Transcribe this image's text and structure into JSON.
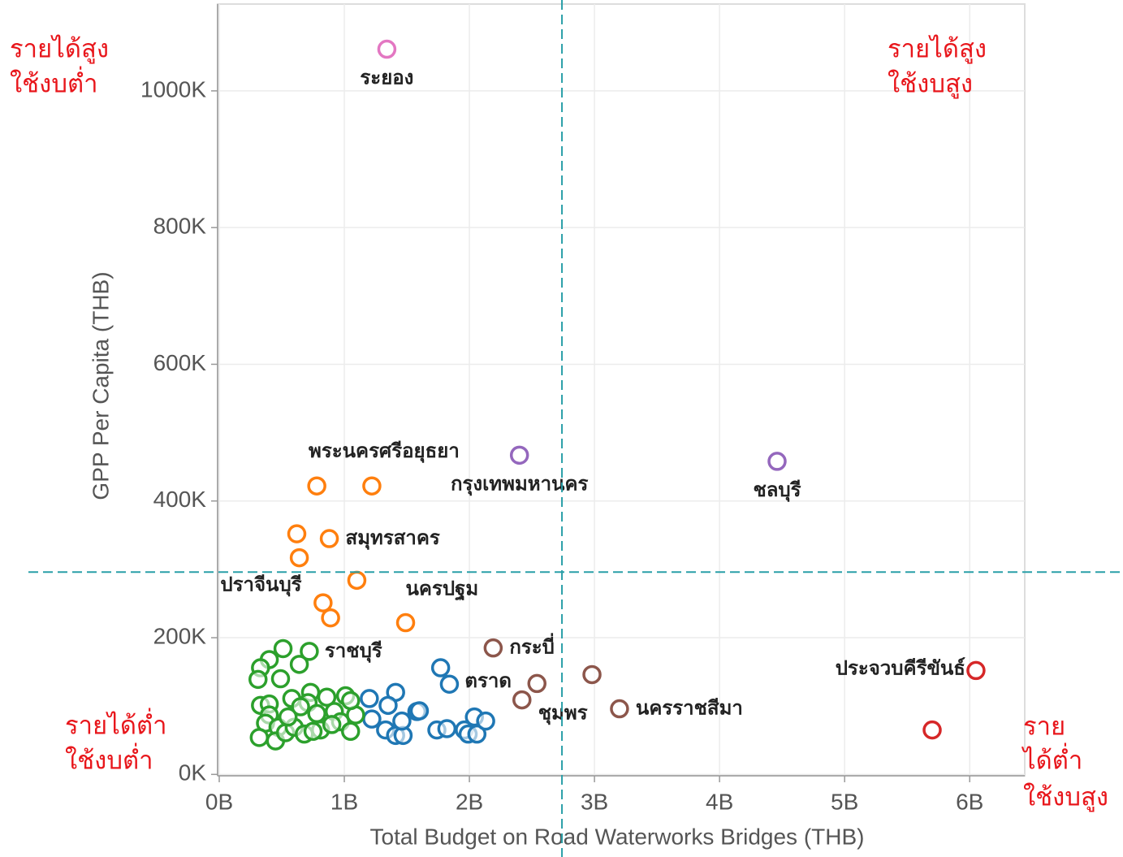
{
  "chart_data": {
    "type": "scatter",
    "x_label": "Total Budget on Road Waterworks Bridges (THB)",
    "y_label": "GPP Per Capita (THB)",
    "xlim": [
      -13000000,
      6440000000
    ],
    "ylim": [
      -2000,
      1127000
    ],
    "xticks": [
      {
        "value": 0,
        "label": "0B"
      },
      {
        "value": 1000000000,
        "label": "1B"
      },
      {
        "value": 2000000000,
        "label": "2B"
      },
      {
        "value": 3000000000,
        "label": "3B"
      },
      {
        "value": 4000000000,
        "label": "4B"
      },
      {
        "value": 5000000000,
        "label": "5B"
      },
      {
        "value": 6000000000,
        "label": "6B"
      }
    ],
    "yticks": [
      {
        "value": 0,
        "label": "0K"
      },
      {
        "value": 200000,
        "label": "200K"
      },
      {
        "value": 400000,
        "label": "400K"
      },
      {
        "value": 600000,
        "label": "600K"
      },
      {
        "value": 800000,
        "label": "800K"
      },
      {
        "value": 1000000,
        "label": "1000K"
      }
    ],
    "grid": true,
    "reference_lines": {
      "x": 2740000000,
      "y": 296000,
      "color": "#2a9fa8"
    },
    "quadrant_labels": {
      "top_left": [
        "รายได้สูง",
        "ใช้งบต่ำ"
      ],
      "top_right": [
        "รายได้สูง",
        "ใช้งบสูง"
      ],
      "bottom_left": [
        "รายได้ต่ำ",
        "ใช้งบต่ำ"
      ],
      "bottom_right": [
        "ราย",
        "ได้ต่ำ",
        "ใช้งบสูง"
      ]
    },
    "series": [
      {
        "color": "#e377c2",
        "x": [
          1340000000
        ],
        "y": [
          1061000
        ],
        "labels": [
          "ระยอง"
        ]
      },
      {
        "color": "#9467bd",
        "x": [
          2400000000,
          4460000000
        ],
        "y": [
          467000,
          458000
        ],
        "labels": [
          "กรุงเทพมหานคร",
          "ชลบุรี"
        ]
      },
      {
        "color": "#ff7f0e",
        "x": [
          780000000,
          1220000000,
          620000000,
          880000000,
          640000000,
          1100000000,
          830000000,
          890000000,
          1490000000
        ],
        "y": [
          422000,
          422000,
          352000,
          345000,
          317000,
          284000,
          251000,
          229000,
          222000
        ],
        "labels": [
          null,
          "พระนครศรีอยุธยา",
          null,
          "สมุทรสาคร",
          "ปราจีนบุรี",
          null,
          null,
          null,
          "นครปฐม"
        ]
      },
      {
        "color": "#8c564b",
        "x": [
          2190000000,
          2540000000,
          2420000000,
          2980000000,
          3200000000
        ],
        "y": [
          185000,
          133000,
          109000,
          146000,
          96000
        ],
        "labels": [
          "กระบี่",
          null,
          "ชุมพร",
          null,
          "นครราชสีมา"
        ]
      },
      {
        "color": "#d62728",
        "x": [
          6050000000,
          5700000000
        ],
        "y": [
          152000,
          65000
        ],
        "labels": [
          "ประจวบคีรีขันธ์",
          null
        ]
      },
      {
        "color": "#1f77b4",
        "x": [
          1770000000,
          1840000000,
          1200000000,
          1410000000,
          1350000000,
          1220000000,
          1330000000,
          1410000000,
          1470000000,
          1460000000,
          1580000000,
          1600000000,
          1740000000,
          1820000000,
          1960000000,
          1990000000,
          2040000000,
          2060000000,
          2130000000
        ],
        "y": [
          156000,
          132000,
          111000,
          120000,
          101000,
          81000,
          65000,
          57000,
          57000,
          78000,
          92000,
          93000,
          65000,
          67000,
          65000,
          59000,
          84000,
          59000,
          78000
        ],
        "labels": [
          null,
          "ตราด",
          null,
          null,
          null,
          null,
          null,
          null,
          null,
          null,
          null,
          null,
          null,
          null,
          null,
          null,
          null,
          null,
          null
        ]
      },
      {
        "color": "#2ca02c",
        "x": [
          510000000,
          400000000,
          720000000,
          330000000,
          310000000,
          490000000,
          640000000,
          730000000,
          580000000,
          710000000,
          860000000,
          1010000000,
          330000000,
          400000000,
          400000000,
          370000000,
          470000000,
          320000000,
          450000000,
          530000000,
          600000000,
          650000000,
          780000000,
          920000000,
          970000000,
          810000000,
          680000000,
          750000000,
          900000000,
          1050000000,
          1090000000,
          1050000000,
          550000000
        ],
        "y": [
          184000,
          168000,
          180000,
          156000,
          139000,
          140000,
          161000,
          120000,
          111000,
          105000,
          113000,
          115000,
          101000,
          103000,
          87000,
          75000,
          69000,
          54000,
          49000,
          61000,
          69000,
          99000,
          89000,
          92000,
          77000,
          65000,
          59000,
          63000,
          73000,
          63000,
          87000,
          108000,
          84000
        ],
        "labels": [
          null,
          null,
          "ราชบุรี",
          null,
          null,
          null,
          null,
          null,
          null,
          null,
          null,
          null,
          null,
          null,
          null,
          null,
          null,
          null,
          null,
          null,
          null,
          null,
          null,
          null,
          null,
          null,
          null,
          null,
          null,
          null,
          null,
          null,
          null
        ]
      }
    ]
  }
}
